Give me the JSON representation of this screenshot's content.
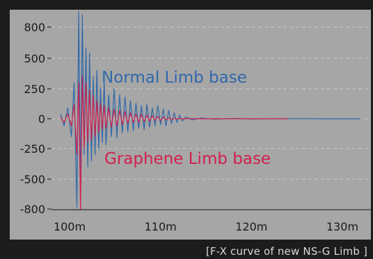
{
  "caption": "[F-X curve of new NS-G Limb ]",
  "colors": {
    "background": "#1c1c1c",
    "plot_area": "#a6a6a6",
    "normal": "#2f68aa",
    "graphene": "#d21f4e",
    "grid": "#c9c9c9"
  },
  "chart_data": {
    "type": "line",
    "title": "",
    "xlabel": "",
    "ylabel": "",
    "xlim": [
      97,
      134
    ],
    "ylim": [
      -800,
      1000
    ],
    "grid": true,
    "x_ticks": [
      100,
      110,
      120,
      130
    ],
    "x_tick_labels": [
      "100m",
      "110m",
      "120m",
      "130m"
    ],
    "y_ticks": [
      800,
      500,
      250,
      0,
      -250,
      -500,
      -800
    ],
    "y_tick_labels": [
      "800",
      "500",
      "250",
      "0",
      "-250",
      "-500",
      "-800"
    ],
    "series": [
      {
        "name": "Normal Limb base",
        "color": "#2f68aa",
        "x": [
          99.0,
          99.4,
          99.8,
          100.2,
          100.5,
          100.8,
          101.0,
          101.2,
          101.4,
          101.6,
          101.8,
          102.0,
          102.2,
          102.4,
          102.6,
          102.8,
          103.0,
          103.2,
          103.4,
          103.6,
          103.8,
          104.0,
          104.3,
          104.6,
          104.9,
          105.2,
          105.5,
          105.8,
          106.1,
          106.4,
          106.7,
          107.0,
          107.3,
          107.6,
          107.9,
          108.2,
          108.5,
          108.8,
          109.1,
          109.4,
          109.7,
          110.0,
          110.3,
          110.6,
          110.9,
          111.2,
          111.5,
          111.8,
          112.1,
          112.4,
          112.8,
          113.5,
          114.5,
          116.0,
          118.0,
          120.0,
          124.0,
          128.0,
          132.0
        ],
        "values": [
          40,
          -60,
          90,
          -150,
          300,
          -780,
          950,
          -560,
          920,
          -300,
          600,
          -400,
          550,
          -350,
          350,
          -300,
          400,
          -250,
          260,
          -200,
          300,
          -220,
          200,
          -150,
          250,
          -160,
          200,
          -120,
          180,
          -110,
          150,
          -100,
          130,
          -80,
          110,
          -90,
          120,
          -70,
          90,
          -60,
          110,
          -50,
          80,
          -60,
          70,
          -40,
          50,
          -30,
          30,
          -20,
          15,
          -10,
          6,
          -4,
          3,
          -2,
          1,
          0,
          0
        ]
      },
      {
        "name": "Graphene Limb base",
        "color": "#d21f4e",
        "x": [
          99.0,
          99.4,
          99.8,
          100.2,
          100.5,
          100.8,
          101.0,
          101.2,
          101.4,
          101.6,
          101.8,
          102.0,
          102.2,
          102.4,
          102.6,
          102.8,
          103.0,
          103.2,
          103.4,
          103.6,
          103.8,
          104.0,
          104.3,
          104.6,
          104.9,
          105.2,
          105.5,
          105.8,
          106.1,
          106.4,
          106.7,
          107.0,
          107.3,
          107.6,
          107.9,
          108.2,
          108.5,
          108.8,
          109.1,
          109.4,
          109.7,
          110.0,
          110.3,
          110.6,
          110.9,
          111.2,
          111.5,
          111.8,
          112.1,
          112.5,
          113.0,
          114.0,
          116.0,
          120.0,
          124.0
        ],
        "values": [
          10,
          -30,
          40,
          -60,
          120,
          -300,
          300,
          -800,
          360,
          -250,
          300,
          -200,
          240,
          -180,
          200,
          -150,
          150,
          -120,
          130,
          -90,
          110,
          -80,
          90,
          -70,
          80,
          -60,
          70,
          -50,
          60,
          -40,
          50,
          -30,
          40,
          -30,
          35,
          -25,
          30,
          -20,
          25,
          -15,
          20,
          -15,
          15,
          -10,
          10,
          -8,
          6,
          -4,
          3,
          -2,
          1,
          0,
          0,
          0,
          0
        ]
      }
    ],
    "annotations": [
      "Normal Limb base",
      "Graphene Limb base"
    ]
  }
}
